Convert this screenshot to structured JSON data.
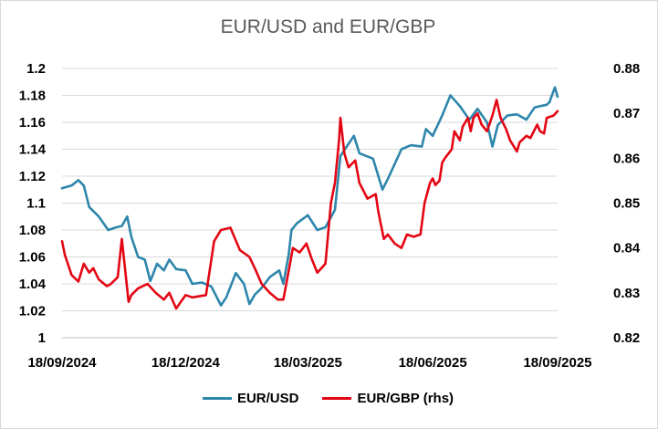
{
  "chart_data": {
    "type": "line",
    "title": "EUR/USD and EUR/GBP",
    "x_ticks": [
      "18/09/2024",
      "18/12/2024",
      "18/03/2025",
      "18/06/2025",
      "18/09/2025"
    ],
    "x_range": [
      "2024-09-18",
      "2025-09-18"
    ],
    "y_left": {
      "min": 1.0,
      "max": 1.2,
      "step": 0.02,
      "ticks": [
        "1",
        "1.02",
        "1.04",
        "1.06",
        "1.08",
        "1.1",
        "1.12",
        "1.14",
        "1.16",
        "1.18",
        "1.2"
      ]
    },
    "y_right": {
      "min": 0.82,
      "max": 0.88,
      "step": 0.01,
      "ticks": [
        "0.82",
        "0.83",
        "0.84",
        "0.85",
        "0.86",
        "0.87",
        "0.88"
      ]
    },
    "grid": "horizontal",
    "legend_position": "bottom",
    "series": [
      {
        "name": "EUR/USD",
        "axis": "left",
        "color": "#2e86ab",
        "points": [
          [
            "2024-09-18",
            1.111
          ],
          [
            "2024-09-25",
            1.113
          ],
          [
            "2024-09-30",
            1.117
          ],
          [
            "2024-10-04",
            1.113
          ],
          [
            "2024-10-08",
            1.097
          ],
          [
            "2024-10-15",
            1.09
          ],
          [
            "2024-10-22",
            1.08
          ],
          [
            "2024-10-28",
            1.082
          ],
          [
            "2024-11-01",
            1.083
          ],
          [
            "2024-11-05",
            1.09
          ],
          [
            "2024-11-08",
            1.075
          ],
          [
            "2024-11-13",
            1.06
          ],
          [
            "2024-11-18",
            1.058
          ],
          [
            "2024-11-22",
            1.042
          ],
          [
            "2024-11-27",
            1.055
          ],
          [
            "2024-12-02",
            1.05
          ],
          [
            "2024-12-06",
            1.058
          ],
          [
            "2024-12-11",
            1.051
          ],
          [
            "2024-12-18",
            1.05
          ],
          [
            "2024-12-23",
            1.04
          ],
          [
            "2024-12-30",
            1.041
          ],
          [
            "2025-01-06",
            1.038
          ],
          [
            "2025-01-13",
            1.024
          ],
          [
            "2025-01-17",
            1.03
          ],
          [
            "2025-01-24",
            1.048
          ],
          [
            "2025-01-30",
            1.04
          ],
          [
            "2025-02-03",
            1.025
          ],
          [
            "2025-02-07",
            1.032
          ],
          [
            "2025-02-12",
            1.037
          ],
          [
            "2025-02-18",
            1.045
          ],
          [
            "2025-02-25",
            1.05
          ],
          [
            "2025-02-28",
            1.04
          ],
          [
            "2025-03-04",
            1.062
          ],
          [
            "2025-03-06",
            1.08
          ],
          [
            "2025-03-10",
            1.085
          ],
          [
            "2025-03-18",
            1.091
          ],
          [
            "2025-03-25",
            1.08
          ],
          [
            "2025-03-31",
            1.082
          ],
          [
            "2025-04-07",
            1.095
          ],
          [
            "2025-04-11",
            1.135
          ],
          [
            "2025-04-21",
            1.15
          ],
          [
            "2025-04-25",
            1.137
          ],
          [
            "2025-05-05",
            1.133
          ],
          [
            "2025-05-12",
            1.11
          ],
          [
            "2025-05-16",
            1.118
          ],
          [
            "2025-05-26",
            1.14
          ],
          [
            "2025-06-02",
            1.143
          ],
          [
            "2025-06-10",
            1.142
          ],
          [
            "2025-06-13",
            1.155
          ],
          [
            "2025-06-18",
            1.15
          ],
          [
            "2025-06-25",
            1.165
          ],
          [
            "2025-07-01",
            1.18
          ],
          [
            "2025-07-08",
            1.172
          ],
          [
            "2025-07-15",
            1.162
          ],
          [
            "2025-07-21",
            1.17
          ],
          [
            "2025-07-28",
            1.16
          ],
          [
            "2025-08-01",
            1.142
          ],
          [
            "2025-08-05",
            1.158
          ],
          [
            "2025-08-12",
            1.165
          ],
          [
            "2025-08-19",
            1.166
          ],
          [
            "2025-08-26",
            1.162
          ],
          [
            "2025-09-01",
            1.171
          ],
          [
            "2025-09-05",
            1.172
          ],
          [
            "2025-09-10",
            1.173
          ],
          [
            "2025-09-12",
            1.175
          ],
          [
            "2025-09-16",
            1.186
          ],
          [
            "2025-09-18",
            1.179
          ]
        ]
      },
      {
        "name": "EUR/GBP (rhs)",
        "axis": "right",
        "color": "#e30613",
        "points": [
          [
            "2024-09-18",
            0.8415
          ],
          [
            "2024-09-20",
            0.8385
          ],
          [
            "2024-09-25",
            0.834
          ],
          [
            "2024-09-30",
            0.8325
          ],
          [
            "2024-10-04",
            0.8365
          ],
          [
            "2024-10-08",
            0.8345
          ],
          [
            "2024-10-11",
            0.8355
          ],
          [
            "2024-10-15",
            0.833
          ],
          [
            "2024-10-21",
            0.8315
          ],
          [
            "2024-10-24",
            0.832
          ],
          [
            "2024-10-29",
            0.8335
          ],
          [
            "2024-11-01",
            0.842
          ],
          [
            "2024-11-06",
            0.828
          ],
          [
            "2024-11-08",
            0.8295
          ],
          [
            "2024-11-13",
            0.831
          ],
          [
            "2024-11-20",
            0.832
          ],
          [
            "2024-11-26",
            0.83
          ],
          [
            "2024-12-02",
            0.8285
          ],
          [
            "2024-12-06",
            0.83
          ],
          [
            "2024-12-11",
            0.8265
          ],
          [
            "2024-12-18",
            0.8295
          ],
          [
            "2024-12-23",
            0.829
          ],
          [
            "2025-01-02",
            0.8295
          ],
          [
            "2025-01-08",
            0.8415
          ],
          [
            "2025-01-13",
            0.844
          ],
          [
            "2025-01-20",
            0.8445
          ],
          [
            "2025-01-27",
            0.8395
          ],
          [
            "2025-02-03",
            0.838
          ],
          [
            "2025-02-07",
            0.8355
          ],
          [
            "2025-02-12",
            0.832
          ],
          [
            "2025-02-18",
            0.83
          ],
          [
            "2025-02-24",
            0.8285
          ],
          [
            "2025-02-28",
            0.8285
          ],
          [
            "2025-03-04",
            0.835
          ],
          [
            "2025-03-07",
            0.84
          ],
          [
            "2025-03-12",
            0.839
          ],
          [
            "2025-03-17",
            0.841
          ],
          [
            "2025-03-21",
            0.8375
          ],
          [
            "2025-03-25",
            0.8345
          ],
          [
            "2025-03-31",
            0.8365
          ],
          [
            "2025-04-04",
            0.85
          ],
          [
            "2025-04-07",
            0.8545
          ],
          [
            "2025-04-10",
            0.864
          ],
          [
            "2025-04-11",
            0.869
          ],
          [
            "2025-04-14",
            0.861
          ],
          [
            "2025-04-17",
            0.858
          ],
          [
            "2025-04-22",
            0.8595
          ],
          [
            "2025-04-25",
            0.8545
          ],
          [
            "2025-05-01",
            0.851
          ],
          [
            "2025-05-07",
            0.852
          ],
          [
            "2025-05-09",
            0.848
          ],
          [
            "2025-05-13",
            0.842
          ],
          [
            "2025-05-16",
            0.843
          ],
          [
            "2025-05-21",
            0.841
          ],
          [
            "2025-05-26",
            0.84
          ],
          [
            "2025-05-30",
            0.843
          ],
          [
            "2025-06-04",
            0.8425
          ],
          [
            "2025-06-09",
            0.843
          ],
          [
            "2025-06-12",
            0.85
          ],
          [
            "2025-06-16",
            0.8545
          ],
          [
            "2025-06-18",
            0.8555
          ],
          [
            "2025-06-20",
            0.854
          ],
          [
            "2025-06-23",
            0.855
          ],
          [
            "2025-06-25",
            0.859
          ],
          [
            "2025-06-27",
            0.86
          ],
          [
            "2025-07-02",
            0.862
          ],
          [
            "2025-07-04",
            0.866
          ],
          [
            "2025-07-08",
            0.864
          ],
          [
            "2025-07-10",
            0.867
          ],
          [
            "2025-07-14",
            0.869
          ],
          [
            "2025-07-16",
            0.866
          ],
          [
            "2025-07-18",
            0.869
          ],
          [
            "2025-07-21",
            0.87
          ],
          [
            "2025-07-24",
            0.8675
          ],
          [
            "2025-07-28",
            0.866
          ],
          [
            "2025-08-01",
            0.8695
          ],
          [
            "2025-08-04",
            0.873
          ],
          [
            "2025-08-07",
            0.869
          ],
          [
            "2025-08-11",
            0.8665
          ],
          [
            "2025-08-14",
            0.864
          ],
          [
            "2025-08-19",
            0.8615
          ],
          [
            "2025-08-21",
            0.8635
          ],
          [
            "2025-08-26",
            0.865
          ],
          [
            "2025-08-29",
            0.8645
          ],
          [
            "2025-09-03",
            0.8675
          ],
          [
            "2025-09-05",
            0.866
          ],
          [
            "2025-09-08",
            0.8655
          ],
          [
            "2025-09-10",
            0.869
          ],
          [
            "2025-09-15",
            0.8695
          ],
          [
            "2025-09-18",
            0.8705
          ]
        ]
      }
    ]
  }
}
